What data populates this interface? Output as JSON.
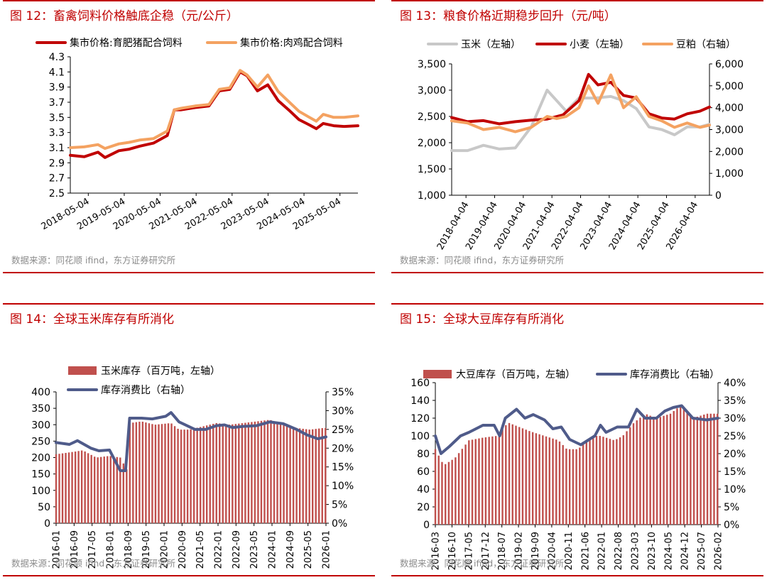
{
  "charts": [
    {
      "title": "图 12：畜禽饲料价格触底企稳（元/公斤）",
      "source": "数据来源：同花顺 ifind，东方证券研究所",
      "chart_data": {
        "type": "line",
        "legend": "top",
        "x_ticks": [
          "2018-05-04",
          "2019-05-04",
          "2020-05-04",
          "2021-05-04",
          "2022-05-04",
          "2023-05-04",
          "2024-05-04",
          "2025-05-04"
        ],
        "x_range": [
          2018.0,
          2026.3
        ],
        "y_ticks": [
          "4.3",
          "4.1",
          "3.9",
          "3.7",
          "3.5",
          "3.3",
          "3.1",
          "2.9",
          "2.7",
          "2.5"
        ],
        "ylim": [
          2.5,
          4.3
        ],
        "series": [
          {
            "name": "集市价格:育肥猪配合饲料",
            "color": "#c00000",
            "axis": "left",
            "x": [
              2018.0,
              2018.4,
              2018.8,
              2019.0,
              2019.4,
              2019.7,
              2020.0,
              2020.4,
              2020.8,
              2021.0,
              2021.2,
              2021.6,
              2022.0,
              2022.3,
              2022.6,
              2022.9,
              2023.1,
              2023.4,
              2023.7,
              2024.0,
              2024.3,
              2024.6,
              2024.9,
              2025.1,
              2025.3,
              2025.6,
              2025.9,
              2026.3
            ],
            "y": [
              3.0,
              2.98,
              3.04,
              2.97,
              3.06,
              3.08,
              3.12,
              3.16,
              3.26,
              3.6,
              3.6,
              3.63,
              3.65,
              3.85,
              3.87,
              4.1,
              4.05,
              3.85,
              3.93,
              3.72,
              3.6,
              3.47,
              3.4,
              3.35,
              3.42,
              3.39,
              3.38,
              3.39
            ]
          },
          {
            "name": "集市价格:肉鸡配合饲料",
            "color": "#f4a261",
            "axis": "left",
            "x": [
              2018.0,
              2018.4,
              2018.8,
              2019.0,
              2019.4,
              2019.7,
              2020.0,
              2020.4,
              2020.8,
              2021.0,
              2021.2,
              2021.6,
              2022.0,
              2022.3,
              2022.6,
              2022.9,
              2023.1,
              2023.4,
              2023.7,
              2024.0,
              2024.3,
              2024.6,
              2024.9,
              2025.1,
              2025.3,
              2025.6,
              2025.9,
              2026.3
            ],
            "y": [
              3.1,
              3.11,
              3.14,
              3.09,
              3.15,
              3.17,
              3.2,
              3.22,
              3.32,
              3.6,
              3.62,
              3.65,
              3.67,
              3.87,
              3.89,
              4.12,
              4.06,
              3.9,
              4.06,
              3.84,
              3.71,
              3.58,
              3.5,
              3.45,
              3.54,
              3.5,
              3.5,
              3.52
            ]
          }
        ]
      }
    },
    {
      "title": "图 13：粮食价格近期稳步回升（元/吨）",
      "source": "数据来源：同花顺 ifind，东方证券研究所",
      "chart_data": {
        "type": "line",
        "legend": "top",
        "x_ticks": [
          "2018-04-04",
          "2019-04-04",
          "2020-04-04",
          "2021-04-04",
          "2022-04-04",
          "2023-04-04",
          "2024-04-04",
          "2025-04-04",
          "2026-04-04"
        ],
        "x_range": [
          2018.0,
          2026.1
        ],
        "y_ticks": [
          "3,500",
          "3,000",
          "2,500",
          "2,000",
          "1,500",
          "1,000"
        ],
        "ylim": [
          1000,
          3500
        ],
        "y2_ticks": [
          "6,000",
          "5,000",
          "4,000",
          "3,000",
          "2,000",
          "1,000",
          "0"
        ],
        "y2lim": [
          0,
          6000
        ],
        "series": [
          {
            "name": "玉米（左轴）",
            "color": "#c8c8c8",
            "axis": "left",
            "x": [
              2018.0,
              2018.5,
              2019.0,
              2019.5,
              2020.0,
              2020.5,
              2021.0,
              2021.3,
              2021.6,
              2022.0,
              2022.5,
              2023.0,
              2023.4,
              2023.8,
              2024.2,
              2024.6,
              2025.0,
              2025.4,
              2025.8,
              2026.1
            ],
            "y": [
              1850,
              1850,
              1950,
              1880,
              1900,
              2300,
              3000,
              2800,
              2600,
              2850,
              2850,
              2880,
              2800,
              2650,
              2300,
              2250,
              2150,
              2300,
              2300,
              2350
            ]
          },
          {
            "name": "小麦（左轴）",
            "color": "#c00000",
            "axis": "left",
            "x": [
              2018.0,
              2018.5,
              2019.0,
              2019.5,
              2020.0,
              2020.5,
              2021.0,
              2021.5,
              2022.0,
              2022.3,
              2022.6,
              2023.0,
              2023.4,
              2023.8,
              2024.2,
              2024.6,
              2025.0,
              2025.4,
              2025.8,
              2026.1
            ],
            "y": [
              2480,
              2400,
              2420,
              2360,
              2400,
              2430,
              2450,
              2530,
              2800,
              3300,
              3100,
              3150,
              2900,
              2850,
              2550,
              2470,
              2450,
              2550,
              2600,
              2680
            ]
          },
          {
            "name": "豆粕（右轴）",
            "color": "#f4a261",
            "axis": "right",
            "x": [
              2018.0,
              2018.5,
              2019.0,
              2019.5,
              2020.0,
              2020.5,
              2021.0,
              2021.3,
              2021.6,
              2022.0,
              2022.3,
              2022.6,
              2023.0,
              2023.4,
              2023.8,
              2024.2,
              2024.6,
              2025.0,
              2025.4,
              2025.8,
              2026.1
            ],
            "y": [
              3400,
              3300,
              3000,
              3100,
              2900,
              3100,
              3600,
              3500,
              3600,
              4000,
              5000,
              4200,
              5500,
              4000,
              4500,
              3600,
              3400,
              3100,
              3300,
              3100,
              3200
            ]
          }
        ]
      }
    },
    {
      "title": "图 14：全球玉米库存有所消化",
      "source": "数据来源：同花顺 ifind，东方证券研究所",
      "chart_data": {
        "type": "bar",
        "legend": "top",
        "x_ticks": [
          "2016-01",
          "2016-09",
          "2017-05",
          "2018-01",
          "2018-09",
          "2019-05",
          "2020-01",
          "2020-09",
          "2021-05",
          "2022-01",
          "2022-09",
          "2023-05",
          "2024-01",
          "2024-09",
          "2025-05",
          "2026-01"
        ],
        "x_range": [
          2016.0,
          2026.1
        ],
        "y_ticks": [
          "400",
          "350",
          "300",
          "250",
          "200",
          "150",
          "100",
          "50",
          "0"
        ],
        "ylim": [
          0,
          400
        ],
        "y2_ticks": [
          "35%",
          "30%",
          "25%",
          "20%",
          "15%",
          "10%",
          "5%",
          "0%"
        ],
        "y2lim": [
          0,
          35
        ],
        "series": [
          {
            "name": "玉米库存（百万吨，左轴）",
            "color": "#c0504d",
            "axis": "left",
            "kind": "bar",
            "x": [
              2016.0,
              2016.7,
              2017.0,
              2017.5,
              2018.0,
              2018.4,
              2018.7,
              2018.75,
              2019.2,
              2019.7,
              2020.3,
              2020.6,
              2021.0,
              2021.5,
              2022.0,
              2022.5,
              2023.0,
              2023.5,
              2024.0,
              2024.5,
              2025.0,
              2025.5,
              2026.0
            ],
            "y": [
              210,
              218,
              222,
              200,
              205,
              200,
              155,
              305,
              310,
              300,
              305,
              285,
              285,
              295,
              305,
              300,
              305,
              310,
              315,
              300,
              290,
              285,
              290
            ]
          },
          {
            "name": "库存消费比（右轴）",
            "color": "#4f5b8a",
            "axis": "right",
            "kind": "line",
            "x": [
              2016.0,
              2016.5,
              2016.8,
              2017.3,
              2017.6,
              2018.0,
              2018.4,
              2018.6,
              2018.75,
              2019.2,
              2019.6,
              2020.1,
              2020.3,
              2020.6,
              2021.2,
              2021.6,
              2022.0,
              2022.3,
              2022.6,
              2023.0,
              2023.5,
              2024.0,
              2024.5,
              2025.0,
              2025.4,
              2025.8,
              2026.1
            ],
            "y": [
              21.5,
              21.0,
              22.0,
              20.0,
              19.3,
              19.5,
              14.0,
              14.0,
              28.0,
              28.0,
              27.8,
              28.5,
              29.5,
              27.0,
              25.0,
              25.0,
              26.0,
              26.2,
              25.5,
              25.8,
              26.0,
              27.0,
              26.5,
              25.0,
              23.5,
              22.5,
              23.0
            ]
          }
        ]
      }
    },
    {
      "title": "图 15：全球大豆库存有所消化",
      "source": "数据来源：同花顺 ifind，东方证券研究所",
      "chart_data": {
        "type": "bar",
        "legend": "top",
        "x_ticks": [
          "2016-03",
          "2016-10",
          "2017-05",
          "2017-12",
          "2018-07",
          "2019-02",
          "2019-09",
          "2020-04",
          "2020-11",
          "2021-06",
          "2022-01",
          "2022-08",
          "2023-03",
          "2023-10",
          "2024-05",
          "2024-12",
          "2025-07",
          "2026-02"
        ],
        "x_range": [
          2016.1,
          2026.2
        ],
        "y_ticks": [
          "160",
          "140",
          "120",
          "100",
          "80",
          "60",
          "40",
          "20",
          "0"
        ],
        "ylim": [
          0,
          160
        ],
        "y2_ticks": [
          "40%",
          "35%",
          "30%",
          "25%",
          "20%",
          "15%",
          "10%",
          "5%",
          "0%"
        ],
        "y2lim": [
          0,
          40
        ],
        "series": [
          {
            "name": "大豆库存（百万吨，左轴）",
            "color": "#c0504d",
            "axis": "left",
            "kind": "bar",
            "x": [
              2016.1,
              2016.4,
              2016.8,
              2017.3,
              2017.8,
              2018.3,
              2018.7,
              2019.1,
              2019.5,
              2020.0,
              2020.5,
              2020.8,
              2021.2,
              2021.7,
              2022.0,
              2022.5,
              2022.8,
              2023.2,
              2023.6,
              2024.0,
              2024.5,
              2024.9,
              2025.3,
              2025.8,
              2026.2
            ],
            "y": [
              85,
              67,
              75,
              95,
              98,
              100,
              115,
              110,
              105,
              100,
              95,
              85,
              85,
              100,
              100,
              95,
              100,
              115,
              125,
              120,
              125,
              135,
              120,
              125,
              125
            ]
          },
          {
            "name": "库存消费比（右轴）",
            "color": "#4f5b8a",
            "axis": "right",
            "kind": "line",
            "x": [
              2016.1,
              2016.3,
              2016.6,
              2017.0,
              2017.3,
              2017.8,
              2018.2,
              2018.4,
              2018.6,
              2019.0,
              2019.3,
              2019.6,
              2020.0,
              2020.3,
              2020.6,
              2020.9,
              2021.3,
              2021.8,
              2022.0,
              2022.2,
              2022.6,
              2023.0,
              2023.3,
              2023.6,
              2024.0,
              2024.3,
              2024.6,
              2024.9,
              2025.3,
              2025.8,
              2026.2
            ],
            "y": [
              25.0,
              20.0,
              22.0,
              25.0,
              26.0,
              28.0,
              28.0,
              25.0,
              30.0,
              32.5,
              30.0,
              31.0,
              29.5,
              27.0,
              27.5,
              24.0,
              22.5,
              25.0,
              28.0,
              26.0,
              27.5,
              27.5,
              32.5,
              30.0,
              30.0,
              32.0,
              33.0,
              33.5,
              30.0,
              29.5,
              30.0
            ]
          }
        ]
      }
    }
  ]
}
